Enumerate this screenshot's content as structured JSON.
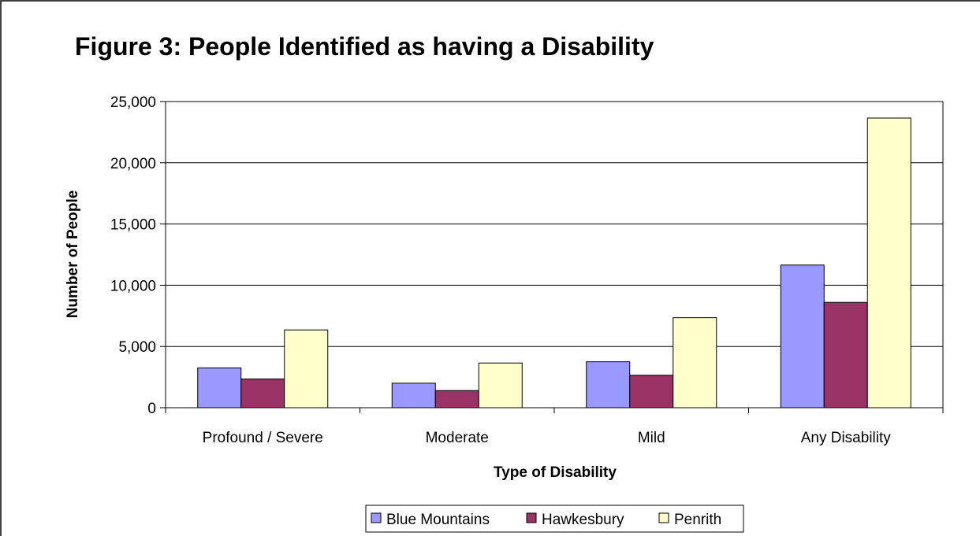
{
  "chart_data": {
    "type": "bar",
    "title": "Figure 3: People Identified as having a Disability",
    "xlabel": "Type of Disability",
    "ylabel": "Number of People",
    "categories": [
      "Profound / Severe",
      "Moderate",
      "Mild",
      "Any Disability"
    ],
    "series": [
      {
        "name": "Blue Mountains",
        "color": "#9999ff",
        "values": [
          3250,
          2000,
          3750,
          11650
        ]
      },
      {
        "name": "Hawkesbury",
        "color": "#993366",
        "values": [
          2350,
          1400,
          2650,
          8600
        ]
      },
      {
        "name": "Penrith",
        "color": "#ffffcc",
        "values": [
          6350,
          3650,
          7350,
          23650
        ]
      }
    ],
    "ylim": [
      0,
      25000
    ],
    "yticks": [
      0,
      5000,
      10000,
      15000,
      20000,
      25000
    ],
    "ytick_labels": [
      "0",
      "5,000",
      "10,000",
      "15,000",
      "20,000",
      "25,000"
    ],
    "grid": true,
    "legend_position": "bottom"
  }
}
